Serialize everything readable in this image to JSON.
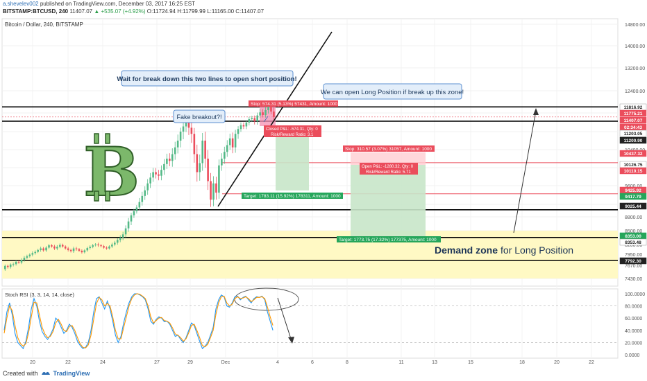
{
  "header": {
    "author": "a.shevelev002",
    "published_text": "published on TradingView.com, December 03, 2017 16:25 EST",
    "symbol_line": "BITSTAMP:BTCUSD, 240",
    "last": "11407.07",
    "change": "+535.07 (+4.92%)",
    "ohlc": "O:11724.94 H:11799.99 L:11165.00 C:11407.07"
  },
  "footer": {
    "created_with": "Created with",
    "brand": "TradingView"
  },
  "colors": {
    "up": "#53b987",
    "down": "#eb4d5c",
    "zone": "#fff9c4",
    "blue_line": "#2196f3",
    "orange_line": "#ff9800"
  },
  "chart_data": [
    {
      "type": "candlestick",
      "title": "Bitcoin / Dollar, 240, BITSTAMP",
      "y_axis_ticks": [
        "14800.00",
        "14000.00",
        "13200.00",
        "12400.00",
        "11600.00",
        "11200.00",
        "10800.00",
        "10400.00",
        "10000.00",
        "9600.00",
        "9200.00",
        "8800.00",
        "8500.00",
        "8200.00",
        "7950.00",
        "7670.00",
        "7430.00"
      ],
      "x_axis_ticks": [
        "20",
        "22",
        "24",
        "27",
        "29",
        "Dec",
        "4",
        "6",
        "8",
        "11",
        "13",
        "15",
        "18",
        "20",
        "22"
      ],
      "price_labels": [
        {
          "text": "11816.92",
          "color": "#222222",
          "bg": "#ffffff"
        },
        {
          "text": "11775.21",
          "color": "#ffffff",
          "bg": "#eb4d5c"
        },
        {
          "text": "11407.07",
          "color": "#ffffff",
          "bg": "#eb4d5c"
        },
        {
          "text": "02:34:43",
          "color": "#ffffff",
          "bg": "#eb4d5c"
        },
        {
          "text": "11203.05",
          "color": "#222222",
          "bg": "#ffffff"
        },
        {
          "text": "11200.90",
          "color": "#ffffff",
          "bg": "#222222"
        },
        {
          "text": "10437.32",
          "color": "#ffffff",
          "bg": "#eb4d5c"
        },
        {
          "text": "10126.75",
          "color": "#222222",
          "bg": "#ffffff"
        },
        {
          "text": "10110.15",
          "color": "#ffffff",
          "bg": "#eb4d5c"
        },
        {
          "text": "9425.92",
          "color": "#ffffff",
          "bg": "#eb4d5c"
        },
        {
          "text": "9417.79",
          "color": "#ffffff",
          "bg": "#26a65b"
        },
        {
          "text": "9025.44",
          "color": "#ffffff",
          "bg": "#222222"
        },
        {
          "text": "8353.00",
          "color": "#ffffff",
          "bg": "#26a65b"
        },
        {
          "text": "8353.48",
          "color": "#222222",
          "bg": "#ffffff"
        },
        {
          "text": "7792.30",
          "color": "#ffffff",
          "bg": "#222222"
        }
      ],
      "horizontal_levels": [
        11816.92,
        11203.05,
        9025.44,
        8353.48,
        7792.3
      ],
      "red_levels": [
        10110.15,
        9425.92
      ],
      "demand_zone": {
        "from": 7430.0,
        "to": 8500.0,
        "label_bold": "Demand zone",
        "label_rest": "for Long Position"
      },
      "callouts": [
        "Wait for break down this two lines to open short position!",
        "We can open Long Position if break up this zone!",
        "Fake breakout?!"
      ],
      "position_labels": {
        "short_stop": "Stop: 574.31 (5.13%) 57431, Amount: 1000",
        "short_pnl": "Closed P&L: -574.31, Qty: 0",
        "short_rr": "Risk/Reward Ratio: 3.1",
        "short_target": "Target: 1783.11 (15.92%) 178311, Amount: 1000",
        "long_stop": "Stop: 310.57 (3.07%) 31057, Amount: 1000",
        "long_pnl": "Open P&L: -1280.32, Qty: 0",
        "long_rr": "Risk/Reward Ratio: 5.71",
        "long_target": "Target: 1773.75 (17.32%) 177375, Amount: 1000"
      },
      "candles_close": [
        7660,
        7640,
        7690,
        7700,
        7760,
        7740,
        7810,
        7860,
        7900,
        7940,
        7980,
        8010,
        8060,
        8100,
        8050,
        8120,
        8180,
        8150,
        8100,
        8140,
        8190,
        8150,
        8100,
        8060,
        8030,
        8100,
        8080,
        8040,
        8000,
        8050,
        8110,
        8140,
        8180,
        8200,
        8180,
        8160,
        8120,
        8100,
        8150,
        8200,
        8240,
        8300,
        8350,
        8420,
        8550,
        8700,
        8850,
        8980,
        9100,
        9250,
        9380,
        9500,
        9650,
        9780,
        9900,
        9850,
        9820,
        9950,
        10080,
        10200,
        10150,
        10300,
        10450,
        10600,
        10800,
        11000,
        11300,
        10950,
        10750,
        10300,
        9900,
        10100,
        10600,
        10200,
        9700,
        9300,
        9650,
        9450,
        10050,
        10200,
        10350,
        10500,
        10650,
        10450,
        10750,
        10900,
        11050,
        11000,
        11150,
        11300,
        11350,
        11200,
        11480,
        11620,
        11500,
        11700,
        11850,
        11650,
        11407
      ],
      "volatility": [
        60,
        60,
        60,
        80,
        70,
        60,
        80,
        90,
        80,
        70,
        90,
        80,
        60,
        90,
        70,
        80,
        70,
        60,
        80,
        90,
        70,
        60,
        60,
        80,
        70,
        90,
        80,
        60,
        70,
        60,
        70,
        80,
        70,
        60,
        80,
        70,
        60,
        70,
        60,
        80,
        80,
        90,
        100,
        110,
        130,
        150,
        160,
        150,
        150,
        170,
        180,
        170,
        190,
        200,
        190,
        180,
        200,
        200,
        220,
        220,
        240,
        260,
        250,
        270,
        300,
        340,
        420,
        450,
        400,
        380,
        420,
        380,
        340,
        400,
        380,
        360,
        320,
        300,
        260,
        240,
        230,
        220,
        210,
        260,
        240,
        220,
        210,
        200,
        210,
        220,
        230,
        250,
        260,
        240,
        230,
        250,
        260,
        240,
        280
      ]
    },
    {
      "type": "line",
      "title": "Stoch RSI (3, 3, 14, 14, close)",
      "y_axis_ticks": [
        "100.0000",
        "80.0000",
        "60.0000",
        "40.0000",
        "20.0000",
        "0.0000"
      ],
      "ylim": [
        0,
        100
      ],
      "series": [
        {
          "color": "#2196f3",
          "values": [
            40,
            70,
            85,
            65,
            35,
            20,
            15,
            10,
            22,
            45,
            75,
            92,
            80,
            55,
            38,
            30,
            25,
            32,
            42,
            60,
            55,
            45,
            35,
            40,
            50,
            45,
            35,
            22,
            15,
            10,
            12,
            20,
            40,
            70,
            92,
            95,
            85,
            75,
            88,
            75,
            55,
            32,
            20,
            30,
            52,
            70,
            85,
            95,
            100,
            100,
            98,
            95,
            90,
            75,
            55,
            50,
            58,
            62,
            60,
            54,
            55,
            50,
            40,
            30,
            32,
            25,
            20,
            28,
            40,
            52,
            48,
            35,
            22,
            10,
            14,
            20,
            32,
            45,
            75,
            90,
            98,
            95,
            80,
            78,
            85,
            95,
            96,
            90,
            94,
            96,
            90,
            85,
            92,
            95,
            94,
            96,
            90,
            70,
            55,
            40
          ]
        },
        {
          "color": "#ff9800",
          "values": [
            35,
            60,
            80,
            72,
            48,
            28,
            18,
            14,
            18,
            36,
            62,
            86,
            85,
            65,
            45,
            34,
            28,
            30,
            38,
            52,
            58,
            50,
            40,
            38,
            46,
            48,
            40,
            28,
            18,
            12,
            11,
            16,
            32,
            58,
            84,
            94,
            90,
            80,
            84,
            80,
            62,
            40,
            26,
            26,
            44,
            62,
            80,
            92,
            98,
            100,
            99,
            96,
            92,
            80,
            62,
            52,
            56,
            60,
            61,
            56,
            55,
            52,
            44,
            34,
            32,
            28,
            22,
            26,
            36,
            48,
            50,
            40,
            28,
            15,
            13,
            17,
            28,
            40,
            66,
            85,
            95,
            96,
            85,
            80,
            83,
            92,
            95,
            92,
            93,
            95,
            92,
            87,
            90,
            94,
            94,
            95,
            92,
            78,
            62,
            48
          ]
        }
      ]
    }
  ]
}
